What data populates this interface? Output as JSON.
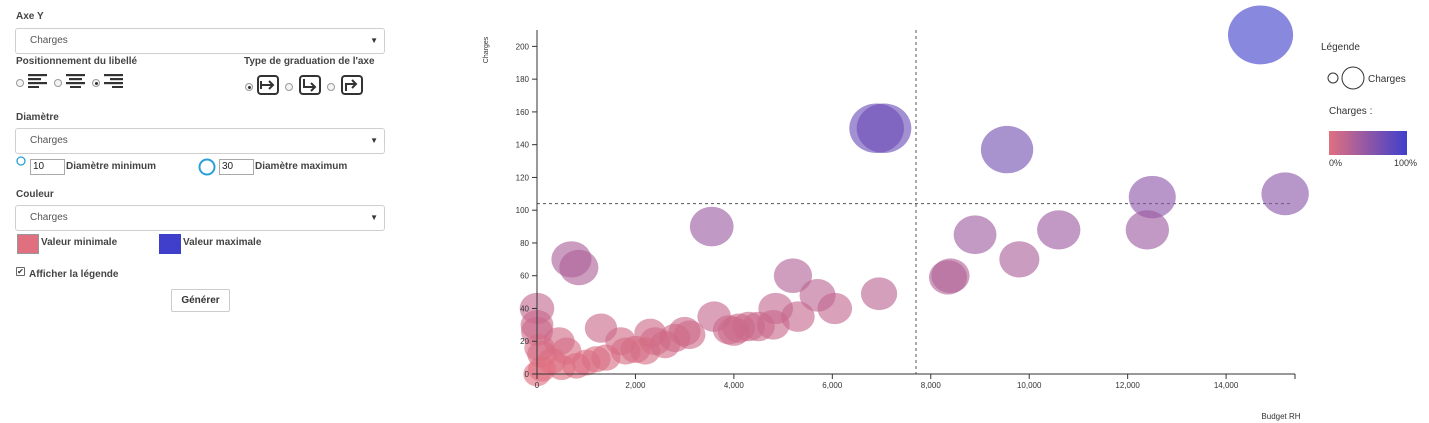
{
  "controls": {
    "axe_y_label": "Axe Y",
    "axe_y_value": "Charges",
    "positionnement_label": "Positionnement du libellé",
    "graduation_label": "Type de graduation de l'axe",
    "diametre_label": "Diamètre",
    "diametre_value": "Charges",
    "diam_min_value": "10",
    "diam_min_label": "Diamètre minimum",
    "diam_max_value": "30",
    "diam_max_label": "Diamètre maximum",
    "couleur_label": "Couleur",
    "couleur_value": "Charges",
    "val_min_label": "Valeur minimale",
    "val_max_label": "Valeur maximale",
    "color_min": "#e07080",
    "color_max": "#3f3fcc",
    "afficher_legende_label": "Afficher la légende",
    "afficher_legende_checked": true,
    "generer_label": "Générer"
  },
  "legend": {
    "title": "Légende",
    "size_label": "Charges",
    "color_title": "Charges :",
    "min_label": "0%",
    "max_label": "100%"
  },
  "chart_data": {
    "type": "scatter",
    "xlabel": "Budget RH",
    "ylabel": "Charges",
    "xlim": [
      0,
      15400
    ],
    "ylim": [
      0,
      210
    ],
    "x_ticks": [
      0,
      2000,
      4000,
      6000,
      8000,
      10000,
      12000,
      14000
    ],
    "y_ticks": [
      0,
      20,
      40,
      60,
      80,
      100,
      120,
      140,
      160,
      180,
      200
    ],
    "x_tick_labels": [
      "0",
      "2,000",
      "4,000",
      "6,000",
      "8,000",
      "10,000",
      "12,000",
      "14,000"
    ],
    "y_tick_labels": [
      "0",
      "20",
      "40",
      "60",
      "80",
      "100",
      "120",
      "140",
      "160",
      "180",
      "200"
    ],
    "reference_lines": {
      "x": 7700,
      "y": 104
    },
    "points": [
      {
        "x": 14700,
        "y": 207
      },
      {
        "x": 6900,
        "y": 150
      },
      {
        "x": 7050,
        "y": 150
      },
      {
        "x": 9550,
        "y": 137
      },
      {
        "x": 15200,
        "y": 110
      },
      {
        "x": 12500,
        "y": 108
      },
      {
        "x": 3550,
        "y": 90
      },
      {
        "x": 10600,
        "y": 88
      },
      {
        "x": 12400,
        "y": 88
      },
      {
        "x": 8900,
        "y": 85
      },
      {
        "x": 9800,
        "y": 70
      },
      {
        "x": 700,
        "y": 70
      },
      {
        "x": 850,
        "y": 65
      },
      {
        "x": 8350,
        "y": 59
      },
      {
        "x": 8400,
        "y": 60
      },
      {
        "x": 5200,
        "y": 60
      },
      {
        "x": 5700,
        "y": 48
      },
      {
        "x": 6950,
        "y": 49
      },
      {
        "x": 6050,
        "y": 40
      },
      {
        "x": 4850,
        "y": 40
      },
      {
        "x": 0,
        "y": 40
      },
      {
        "x": 5300,
        "y": 35
      },
      {
        "x": 3600,
        "y": 35
      },
      {
        "x": 4300,
        "y": 29
      },
      {
        "x": 4100,
        "y": 28
      },
      {
        "x": 3900,
        "y": 27
      },
      {
        "x": 4000,
        "y": 26
      },
      {
        "x": 4500,
        "y": 29
      },
      {
        "x": 4800,
        "y": 30
      },
      {
        "x": 1300,
        "y": 28
      },
      {
        "x": 3000,
        "y": 26
      },
      {
        "x": 3100,
        "y": 24
      },
      {
        "x": 2300,
        "y": 25
      },
      {
        "x": 2400,
        "y": 20
      },
      {
        "x": 2000,
        "y": 15
      },
      {
        "x": 2200,
        "y": 14
      },
      {
        "x": 2600,
        "y": 18
      },
      {
        "x": 2800,
        "y": 22
      },
      {
        "x": 1700,
        "y": 20
      },
      {
        "x": 1800,
        "y": 14
      },
      {
        "x": 450,
        "y": 20
      },
      {
        "x": 0,
        "y": 26
      },
      {
        "x": 0,
        "y": 30
      },
      {
        "x": 50,
        "y": 16
      },
      {
        "x": 100,
        "y": 12
      },
      {
        "x": 600,
        "y": 14
      },
      {
        "x": 300,
        "y": 8
      },
      {
        "x": 500,
        "y": 4
      },
      {
        "x": 800,
        "y": 5
      },
      {
        "x": 1000,
        "y": 7
      },
      {
        "x": 1200,
        "y": 9
      },
      {
        "x": 1400,
        "y": 10
      },
      {
        "x": 100,
        "y": 3
      },
      {
        "x": 0,
        "y": 0
      }
    ]
  }
}
